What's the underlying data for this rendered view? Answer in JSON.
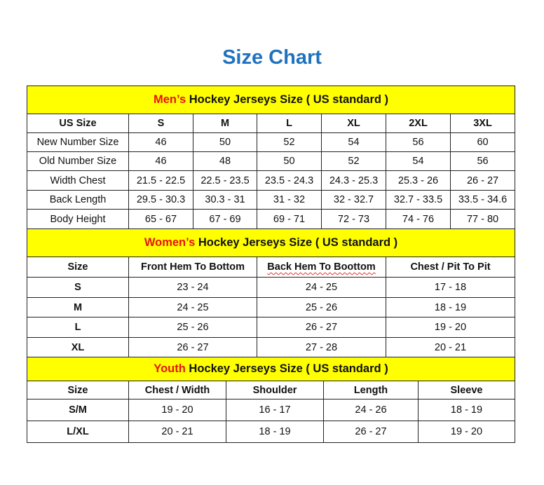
{
  "title": "Size Chart",
  "men": {
    "section_prefix": "Men’s",
    "section_title": " Hockey Jerseys Size ( US standard )",
    "headers": [
      "US Size",
      "S",
      "M",
      "L",
      "XL",
      "2XL",
      "3XL"
    ],
    "rows": [
      [
        "New Number Size",
        "46",
        "50",
        "52",
        "54",
        "56",
        "60"
      ],
      [
        "Old Number Size",
        "46",
        "48",
        "50",
        "52",
        "54",
        "56"
      ],
      [
        "Width Chest",
        "21.5 - 22.5",
        "22.5 - 23.5",
        "23.5 - 24.3",
        "24.3 - 25.3",
        "25.3 - 26",
        "26 - 27"
      ],
      [
        "Back Length",
        "29.5 - 30.3",
        "30.3 - 31",
        "31 - 32",
        "32 - 32.7",
        "32.7 - 33.5",
        "33.5 - 34.6"
      ],
      [
        "Body Height",
        "65 - 67",
        "67 - 69",
        "69 - 71",
        "72 - 73",
        "74 - 76",
        "77 - 80"
      ]
    ]
  },
  "women": {
    "section_prefix": "Women’s",
    "section_title": " Hockey Jerseys Size ( US standard )",
    "headers": [
      "Size",
      "Front Hem To Bottom",
      "Back Hem To Boottom",
      "Chest / Pit To Pit"
    ],
    "rows": [
      [
        "S",
        "23 - 24",
        "24 - 25",
        "17 - 18"
      ],
      [
        "M",
        "24 - 25",
        "25 - 26",
        "18 - 19"
      ],
      [
        "L",
        "25 - 26",
        "26 - 27",
        "19 - 20"
      ],
      [
        "XL",
        "26 - 27",
        "27 - 28",
        "20 - 21"
      ]
    ]
  },
  "youth": {
    "section_prefix": "Youth",
    "section_title": " Hockey Jerseys Size ( US standard )",
    "headers": [
      "Size",
      "Chest / Width",
      "Shoulder",
      "Length",
      "Sleeve"
    ],
    "rows": [
      [
        "S/M",
        "19 - 20",
        "16 - 17",
        "24 - 26",
        "18 - 19"
      ],
      [
        "L/XL",
        "20 - 21",
        "18 - 19",
        "26 - 27",
        "19 - 20"
      ]
    ]
  }
}
